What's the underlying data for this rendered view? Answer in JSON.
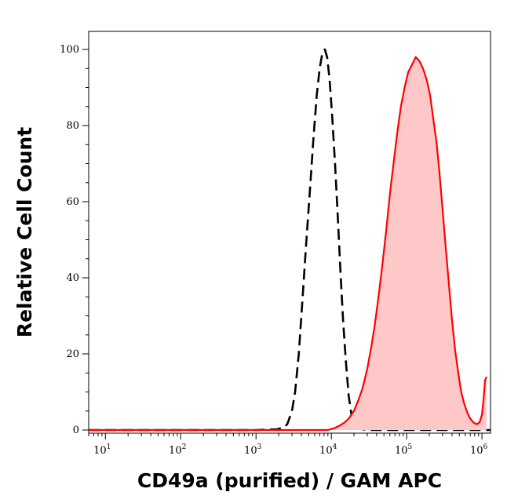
{
  "chart_data": {
    "type": "area",
    "xlabel": "CD49a (purified) / GAM APC",
    "ylabel": "Relative Cell Count",
    "xscale": "log",
    "xlim": [
      6,
      1300000
    ],
    "ylim": [
      0,
      104
    ],
    "grid": false,
    "legend": "none",
    "x_ticks": [
      {
        "base": "10",
        "exp": "1",
        "value": 10
      },
      {
        "base": "10",
        "exp": "2",
        "value": 100
      },
      {
        "base": "10",
        "exp": "3",
        "value": 1000
      },
      {
        "base": "10",
        "exp": "4",
        "value": 10000
      },
      {
        "base": "10",
        "exp": "5",
        "value": 100000
      },
      {
        "base": "10",
        "exp": "6",
        "value": 1000000
      }
    ],
    "y_ticks": [
      "0",
      "20",
      "40",
      "60",
      "80",
      "100"
    ],
    "y_tick_values": [
      0,
      20,
      40,
      60,
      80,
      100
    ],
    "series": [
      {
        "style": "dashed-outline",
        "color": "#000000",
        "points": [
          [
            6,
            0
          ],
          [
            1000,
            0
          ],
          [
            1900,
            0.2
          ],
          [
            2300,
            0.6
          ],
          [
            2600,
            1.5
          ],
          [
            3000,
            5
          ],
          [
            3300,
            10
          ],
          [
            3700,
            20
          ],
          [
            4100,
            33
          ],
          [
            4600,
            48
          ],
          [
            5200,
            63
          ],
          [
            5800,
            77
          ],
          [
            6400,
            88
          ],
          [
            7000,
            95
          ],
          [
            7600,
            99
          ],
          [
            8200,
            100
          ],
          [
            8800,
            98
          ],
          [
            9500,
            92
          ],
          [
            10300,
            82
          ],
          [
            11200,
            70
          ],
          [
            12200,
            56
          ],
          [
            13200,
            42
          ],
          [
            14300,
            29
          ],
          [
            15600,
            18
          ],
          [
            17000,
            9
          ],
          [
            18500,
            4
          ],
          [
            20500,
            1.5
          ],
          [
            24000,
            0.3
          ],
          [
            30000,
            0
          ],
          [
            1300000,
            0
          ]
        ]
      },
      {
        "style": "filled",
        "color": "#ff0000",
        "fill": "#ffc8c8",
        "points": [
          [
            6,
            0
          ],
          [
            9000,
            0
          ],
          [
            11000,
            0.5
          ],
          [
            13000,
            1.2
          ],
          [
            15000,
            2
          ],
          [
            17000,
            3
          ],
          [
            20000,
            5
          ],
          [
            23000,
            8
          ],
          [
            26000,
            11
          ],
          [
            30000,
            16
          ],
          [
            34000,
            22
          ],
          [
            38000,
            28
          ],
          [
            43000,
            36
          ],
          [
            48000,
            44
          ],
          [
            54000,
            53
          ],
          [
            60000,
            62
          ],
          [
            67000,
            70
          ],
          [
            75000,
            78
          ],
          [
            84000,
            85
          ],
          [
            94000,
            90
          ],
          [
            105000,
            94
          ],
          [
            118000,
            96
          ],
          [
            132000,
            98
          ],
          [
            148000,
            97
          ],
          [
            165000,
            95
          ],
          [
            185000,
            92
          ],
          [
            205000,
            88
          ],
          [
            225000,
            82
          ],
          [
            248000,
            76
          ],
          [
            272000,
            68
          ],
          [
            300000,
            58
          ],
          [
            330000,
            48
          ],
          [
            365000,
            38
          ],
          [
            400000,
            29
          ],
          [
            440000,
            21
          ],
          [
            485000,
            15
          ],
          [
            530000,
            10
          ],
          [
            580000,
            7
          ],
          [
            640000,
            4.5
          ],
          [
            700000,
            3
          ],
          [
            770000,
            2
          ],
          [
            850000,
            1.5
          ],
          [
            930000,
            2
          ],
          [
            1000000,
            4
          ],
          [
            1050000,
            8
          ],
          [
            1100000,
            13
          ],
          [
            1150000,
            14
          ]
        ]
      }
    ]
  }
}
